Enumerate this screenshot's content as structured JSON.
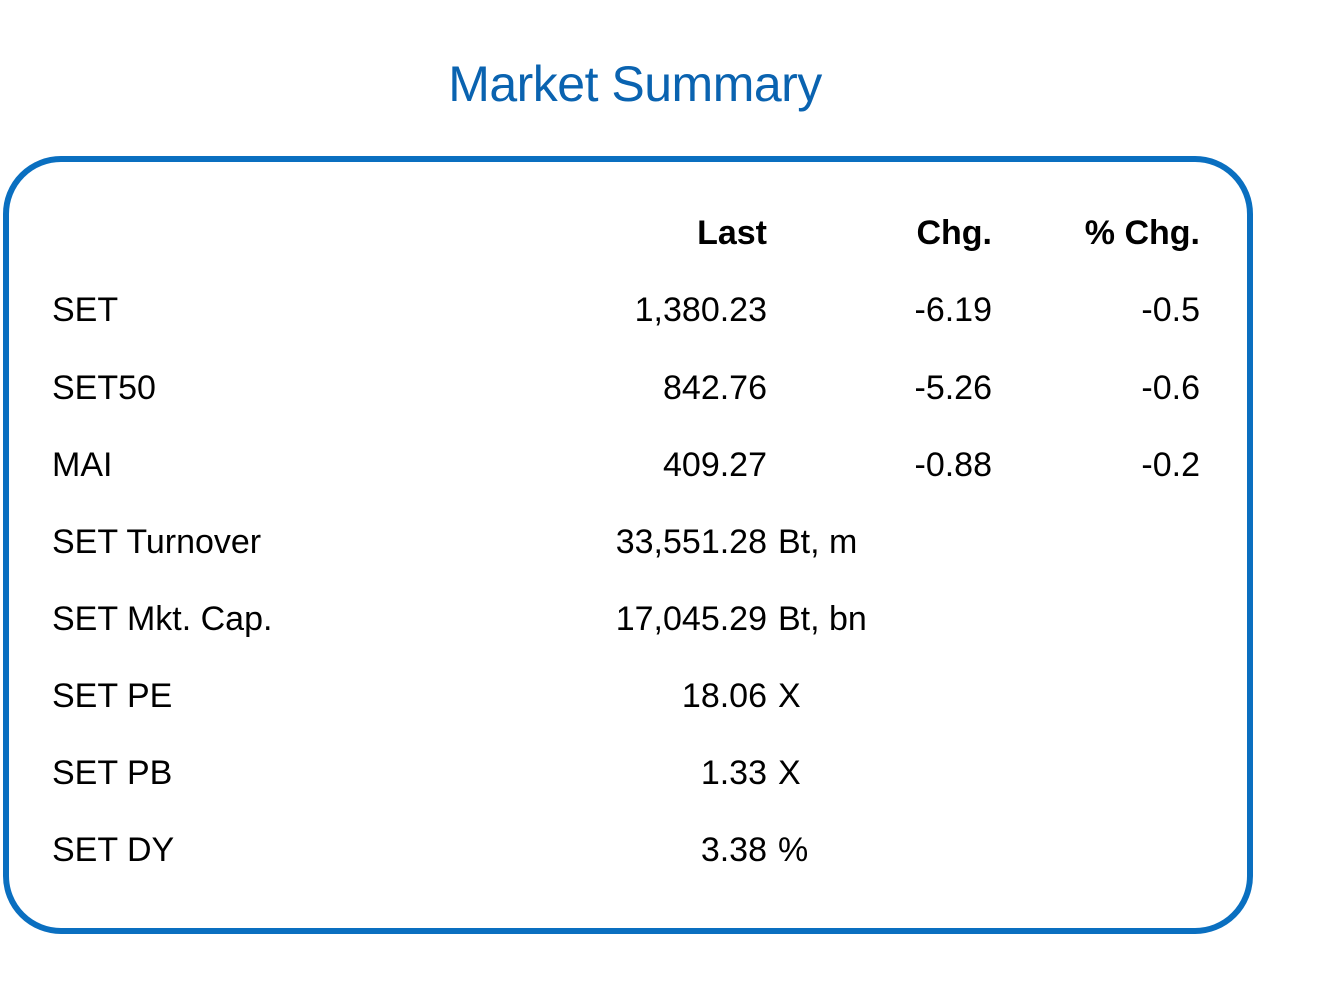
{
  "title": "Market Summary",
  "colors": {
    "title": "#0a63b0",
    "border": "#0a6fc0"
  },
  "columns": {
    "last": "Last",
    "chg": "Chg.",
    "pct_chg": "% Chg."
  },
  "indices": [
    {
      "name": "SET",
      "last": "1,380.23",
      "chg": "-6.19",
      "pct_chg": "-0.5"
    },
    {
      "name": "SET50",
      "last": "842.76",
      "chg": "-5.26",
      "pct_chg": "-0.6"
    },
    {
      "name": "MAI",
      "last": "409.27",
      "chg": "-0.88",
      "pct_chg": "-0.2"
    }
  ],
  "stats": [
    {
      "name": "SET Turnover",
      "value": "33,551.28",
      "unit": "Bt, m"
    },
    {
      "name": "SET Mkt. Cap.",
      "value": "17,045.29",
      "unit": "Bt, bn"
    },
    {
      "name": "SET PE",
      "value": "18.06",
      "unit": "X"
    },
    {
      "name": "SET PB",
      "value": "1.33",
      "unit": "X"
    },
    {
      "name": "SET DY",
      "value": "3.38",
      "unit": "%"
    }
  ]
}
